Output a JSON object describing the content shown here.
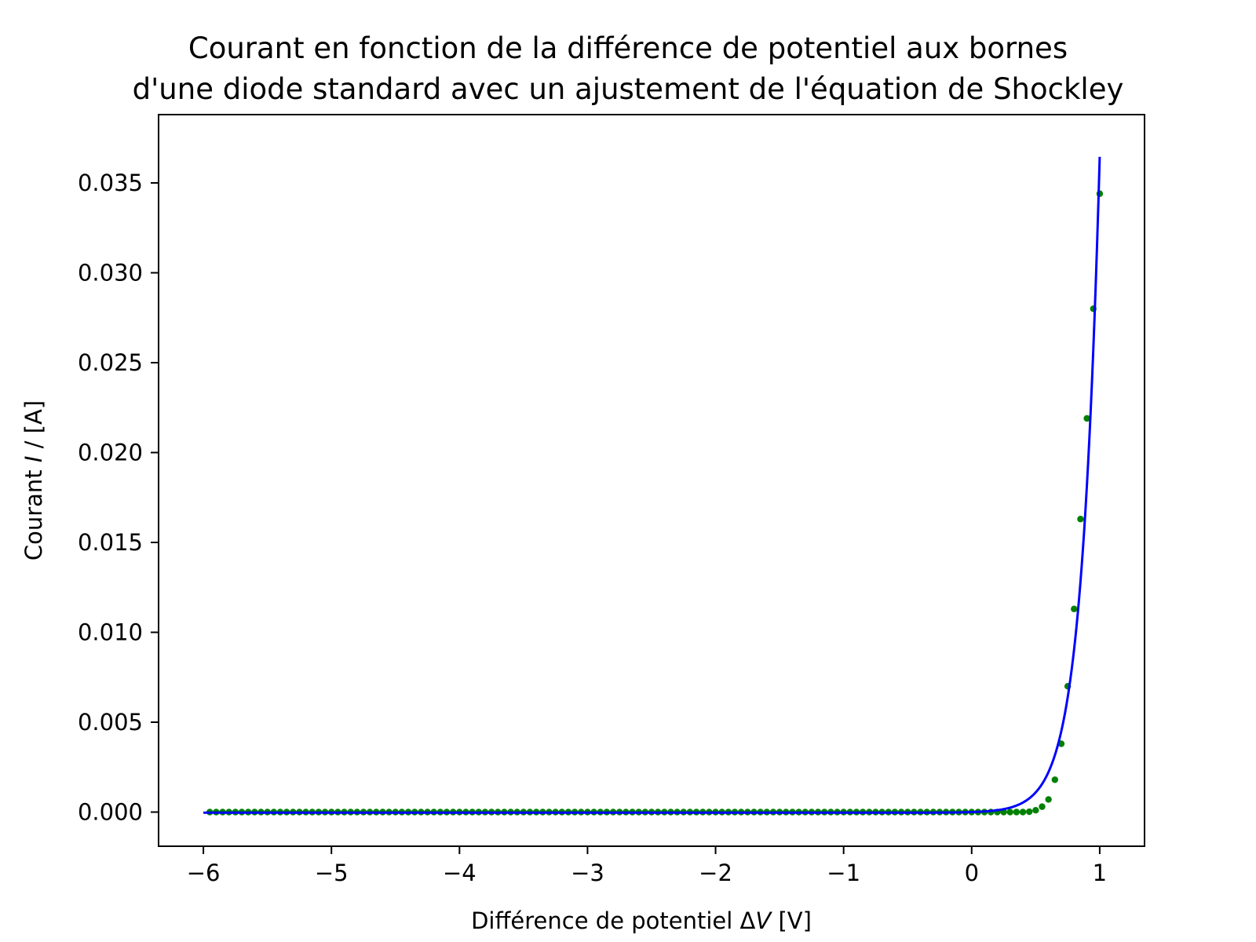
{
  "chart_data": {
    "type": "scatter",
    "title": [
      "Courant en fonction de la différence de potentiel aux bornes",
      "d'une diode standard avec un ajustement de l'équation de Shockley"
    ],
    "xlabel": "Différence de potentiel ΔV [V]",
    "ylabel": "Courant I / [A]",
    "xlim": [
      -6.35,
      1.35
    ],
    "ylim": [
      -0.0019,
      0.0388
    ],
    "x_ticks": [
      -6,
      -5,
      -4,
      -3,
      -2,
      -1,
      0,
      1
    ],
    "x_tick_labels": [
      "−6",
      "−5",
      "−4",
      "−3",
      "−2",
      "−1",
      "0",
      "1"
    ],
    "y_ticks": [
      0,
      0.005,
      0.01,
      0.015,
      0.02,
      0.025,
      0.03,
      0.035
    ],
    "y_tick_labels": [
      "0.000",
      "0.005",
      "0.010",
      "0.015",
      "0.020",
      "0.025",
      "0.030",
      "0.035"
    ],
    "grid": false,
    "series": [
      {
        "kind": "points",
        "color": "#008000",
        "x_range": [
          -5.95,
          1.0
        ],
        "x_step": 0.05,
        "x": [
          0.45,
          0.5,
          0.55,
          0.6,
          0.65,
          0.7,
          0.75,
          0.8,
          0.85,
          0.9,
          0.95,
          1.0
        ],
        "y": [
          2e-05,
          0.0001,
          0.0003,
          0.0007,
          0.0018,
          0.0038,
          0.007,
          0.0113,
          0.0163,
          0.0219,
          0.028,
          0.0344
        ],
        "baseline_y": 0
      },
      {
        "kind": "line",
        "color": "#0000ff",
        "model": "shockley",
        "x_range": [
          -6.0,
          1.0
        ],
        "I_s": 3.5e-05,
        "V_t": 0.1439
      }
    ]
  }
}
